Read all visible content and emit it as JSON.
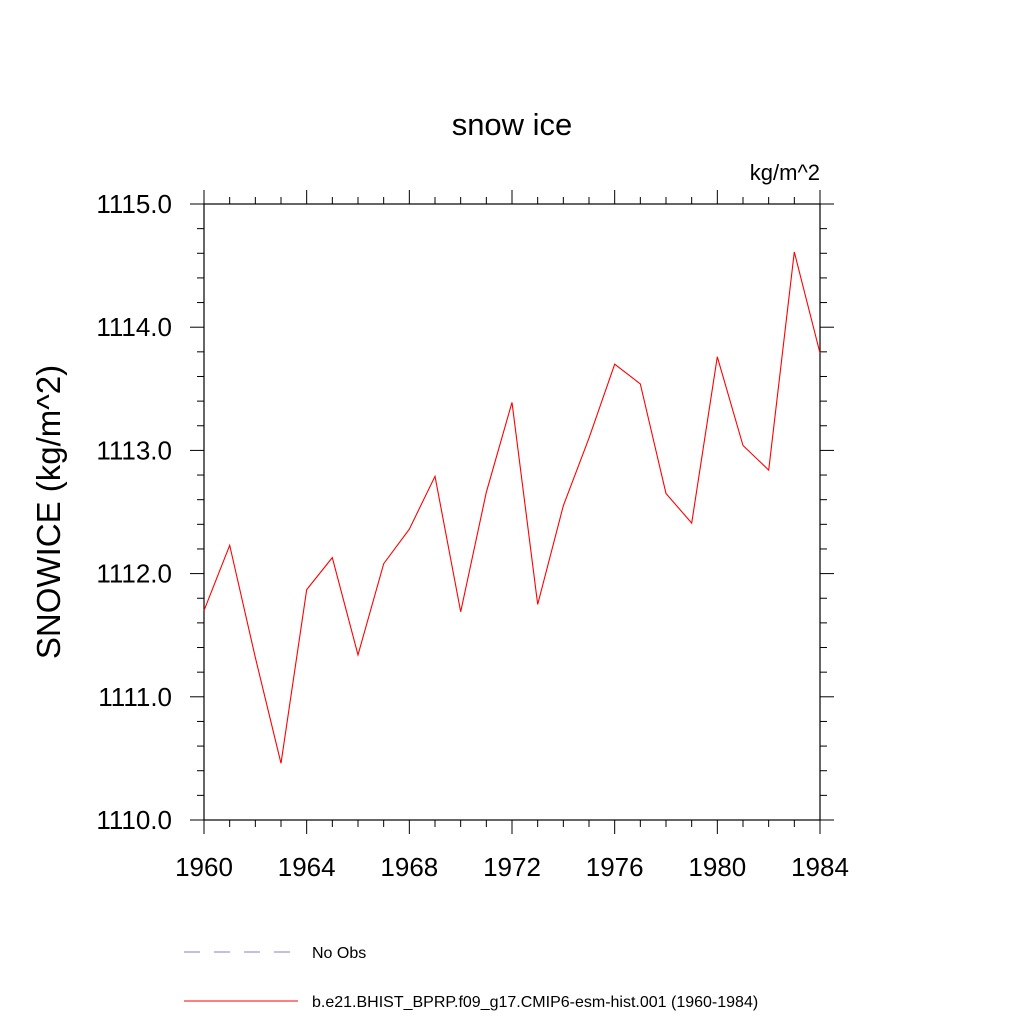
{
  "chart_data": {
    "type": "line",
    "title": "snow ice",
    "units": "kg/m^2",
    "xlabel": "",
    "ylabel": "SNOWICE  (kg/m^2)",
    "xlim": [
      1960,
      1984
    ],
    "ylim": [
      1110.0,
      1115.0
    ],
    "x_ticks": [
      1960,
      1964,
      1968,
      1972,
      1976,
      1980,
      1984
    ],
    "x_tick_labels": [
      "1960",
      "1964",
      "1968",
      "1972",
      "1976",
      "1980",
      "1984"
    ],
    "y_ticks": [
      1110.0,
      1111.0,
      1112.0,
      1113.0,
      1114.0,
      1115.0
    ],
    "y_tick_labels": [
      "1110.0",
      "1111.0",
      "1112.0",
      "1113.0",
      "1114.0",
      "1115.0"
    ],
    "grid": false,
    "legend_position": "bottom",
    "series": [
      {
        "name": "b.e21.BHIST_BPRP.f09_g17.CMIP6-esm-hist.001 (1960-1984)",
        "color": "#ff0000",
        "style": "solid",
        "x": [
          1960,
          1961,
          1962,
          1963,
          1964,
          1965,
          1966,
          1967,
          1968,
          1969,
          1970,
          1971,
          1972,
          1973,
          1974,
          1975,
          1976,
          1977,
          1978,
          1979,
          1980,
          1981,
          1982,
          1983,
          1984
        ],
        "values": [
          1111.7,
          1112.23,
          1111.32,
          1110.46,
          1111.87,
          1112.13,
          1111.34,
          1112.08,
          1112.36,
          1112.79,
          1111.69,
          1112.66,
          1113.39,
          1111.75,
          1112.55,
          1113.1,
          1113.7,
          1113.54,
          1112.65,
          1112.41,
          1113.76,
          1113.04,
          1112.84,
          1114.61,
          1113.79
        ]
      }
    ],
    "legend": [
      {
        "label": "No Obs",
        "color": "#8080cc",
        "style": "dashed"
      },
      {
        "label": "b.e21.BHIST_BPRP.f09_g17.CMIP6-esm-hist.001 (1960-1984)",
        "color": "#ff0000",
        "style": "solid"
      }
    ]
  }
}
